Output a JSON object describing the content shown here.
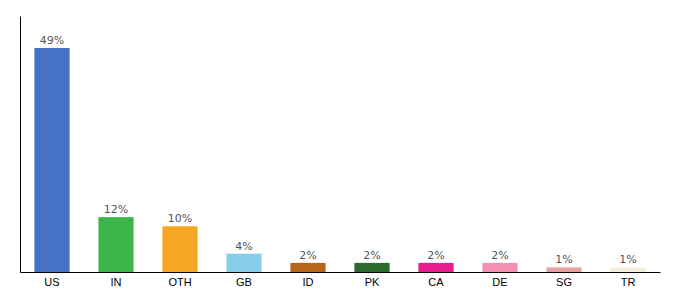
{
  "chart_data": {
    "type": "bar",
    "categories": [
      "US",
      "IN",
      "OTH",
      "GB",
      "ID",
      "PK",
      "CA",
      "DE",
      "SG",
      "TR"
    ],
    "values": [
      49,
      12,
      10,
      4,
      2,
      2,
      2,
      2,
      1,
      1
    ],
    "value_labels": [
      "49%",
      "12%",
      "10%",
      "4%",
      "2%",
      "2%",
      "2%",
      "2%",
      "1%",
      "1%"
    ],
    "colors": [
      "#4472c4",
      "#3cb54a",
      "#f5a623",
      "#87ceeb",
      "#b8651a",
      "#2d6a2d",
      "#e91e8c",
      "#f48fb1",
      "#e8a0a0",
      "#f5f0dc"
    ],
    "ylim": [
      0,
      56
    ],
    "data_labels": true,
    "tick_labels": "x"
  }
}
